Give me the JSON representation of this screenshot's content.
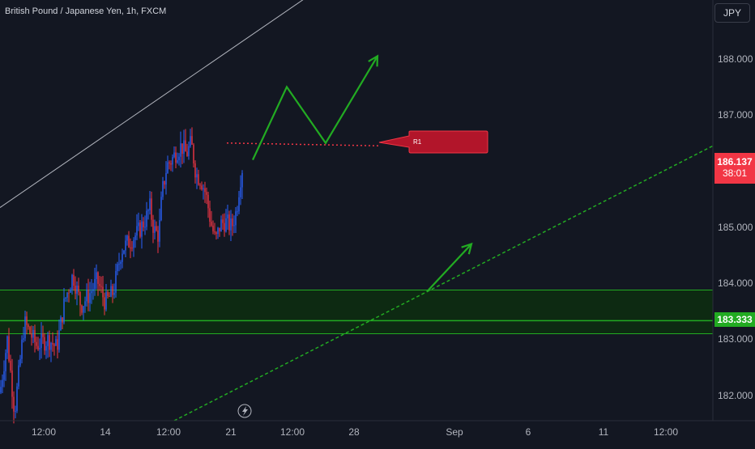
{
  "header": {
    "title": "British Pound / Japanese Yen, 1h, FXCM",
    "currency_button": "JPY"
  },
  "price_axis": {
    "ticks": [
      "188.000",
      "187.000",
      "186.000",
      "185.000",
      "184.000",
      "183.000",
      "182.000"
    ],
    "current_price": "186.137",
    "countdown": "38:01",
    "level_tag": "183.333"
  },
  "time_axis": {
    "ticks": [
      "12:00",
      "14",
      "12:00",
      "21",
      "12:00",
      "28",
      "Sep",
      "6",
      "11",
      "12:00"
    ]
  },
  "annotations": {
    "r1_label": "R1"
  },
  "colors": {
    "background": "#131722",
    "bull_candle": "#2962ff",
    "bear_candle": "#f23645",
    "drawing_green": "#22ab22",
    "drawing_red": "#f23645",
    "zone_fill": "#0d2a12",
    "price_tag_red": "#f23645",
    "price_tag_green": "#22ab22"
  },
  "chart_data": {
    "type": "candlestick",
    "symbol": "British Pound / Japanese Yen",
    "interval": "1h",
    "source": "FXCM",
    "y_range": [
      181.55,
      189.05
    ],
    "last_price": 186.137,
    "support_zone": [
      183.1,
      183.88
    ],
    "support_line": 183.333,
    "resistance_r1": 186.45,
    "price_path": [
      [
        0,
        182.05
      ],
      [
        9,
        183.0
      ],
      [
        18,
        181.7
      ],
      [
        30,
        183.3
      ],
      [
        45,
        182.9
      ],
      [
        60,
        183.0
      ],
      [
        70,
        182.85
      ],
      [
        80,
        183.7
      ],
      [
        90,
        184.15
      ],
      [
        100,
        183.6
      ],
      [
        110,
        183.8
      ],
      [
        120,
        184.05
      ],
      [
        130,
        183.65
      ],
      [
        140,
        183.85
      ],
      [
        150,
        184.6
      ],
      [
        160,
        184.75
      ],
      [
        170,
        184.9
      ],
      [
        180,
        185.15
      ],
      [
        185,
        185.35
      ],
      [
        190,
        184.95
      ],
      [
        196,
        184.85
      ],
      [
        200,
        185.6
      ],
      [
        206,
        186.1
      ],
      [
        212,
        186.2
      ],
      [
        218,
        186.35
      ],
      [
        224,
        186.45
      ],
      [
        230,
        186.3
      ],
      [
        236,
        186.5
      ],
      [
        242,
        185.95
      ],
      [
        248,
        185.85
      ],
      [
        254,
        185.6
      ],
      [
        260,
        185.1
      ],
      [
        266,
        184.75
      ],
      [
        272,
        185.05
      ],
      [
        278,
        185.1
      ],
      [
        286,
        185.0
      ],
      [
        292,
        185.3
      ],
      [
        296,
        185.8
      ],
      [
        300,
        186.137
      ]
    ],
    "drawings": [
      {
        "kind": "line",
        "color": "#b2b5be",
        "points": [
          [
            0,
            185.35
          ],
          [
            520,
            190.5
          ]
        ]
      },
      {
        "kind": "dashed-line",
        "color": "#22ab22",
        "points": [
          [
            215,
            181.55
          ],
          [
            880,
            186.45
          ]
        ]
      },
      {
        "kind": "dotted-line",
        "color": "#f23645",
        "points": [
          [
            280,
            186.5
          ],
          [
            470,
            186.45
          ]
        ]
      },
      {
        "kind": "arrow",
        "color": "#22ab22",
        "points": [
          [
            312,
            186.2
          ],
          [
            354,
            187.5
          ],
          [
            402,
            186.5
          ],
          [
            466,
            188.05
          ]
        ]
      },
      {
        "kind": "arrow",
        "color": "#22ab22",
        "points": [
          [
            527,
            183.85
          ],
          [
            582,
            184.7
          ]
        ]
      }
    ]
  }
}
